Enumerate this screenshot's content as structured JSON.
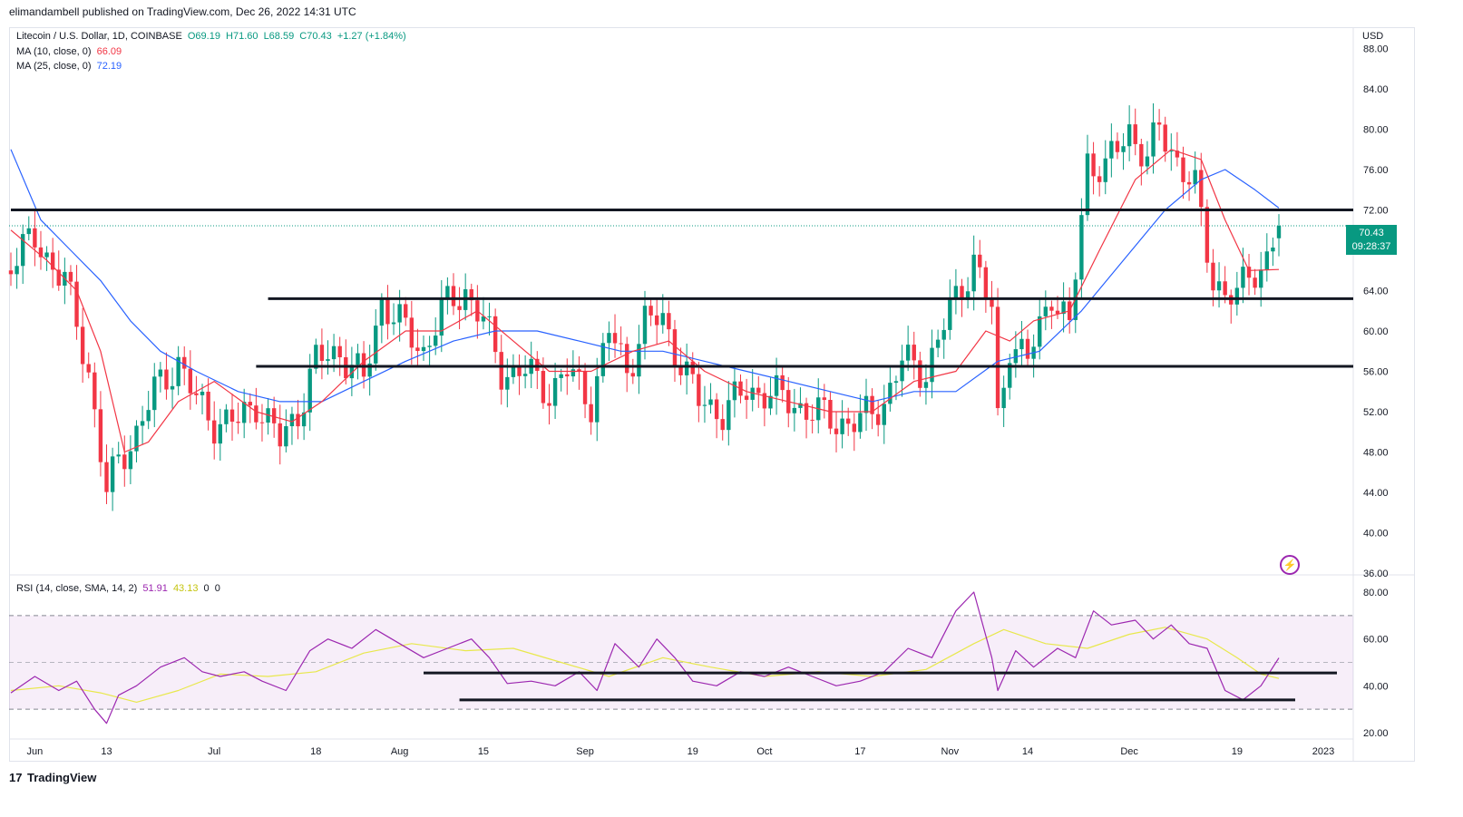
{
  "publisher_line": "elimandambell published on TradingView.com, Dec 26, 2022 14:31 UTC",
  "legend": {
    "symbol": "Litecoin / U.S. Dollar, 1D, COINBASE",
    "open": "O69.19",
    "high": "H71.60",
    "low": "L68.59",
    "close": "C70.43",
    "change": "+1.27 (+1.84%)",
    "ma10_label": "MA (10, close, 0)",
    "ma10_value": "66.09",
    "ma25_label": "MA (25, close, 0)",
    "ma25_value": "72.19",
    "rsi_label": "RSI (14, close, SMA, 14, 2)",
    "rsi_value": "51.91",
    "rsi_sma_value": "43.13",
    "rsi_extra1": "0",
    "rsi_extra2": "0"
  },
  "price_tag": {
    "price": "70.43",
    "countdown": "09:28:37"
  },
  "currency": "USD",
  "footer": {
    "brand": "TradingView"
  },
  "colors": {
    "up": "#089981",
    "down": "#f23645",
    "ma10": "#f23645",
    "ma25": "#2962ff",
    "rsi": "#9c27b0",
    "rsi_sma": "#e8e84c"
  },
  "chart_data": [
    {
      "type": "candlestick",
      "title": "Litecoin / U.S. Dollar, 1D, COINBASE",
      "y_ticks": [
        "88.00",
        "84.00",
        "80.00",
        "76.00",
        "72.00",
        "68.00",
        "64.00",
        "60.00",
        "56.00",
        "52.00",
        "48.00",
        "44.00",
        "40.00",
        "36.00"
      ],
      "ylim": [
        36,
        89
      ],
      "x_ticks": [
        "Jun",
        "13",
        "Jul",
        "18",
        "Aug",
        "15",
        "Sep",
        "19",
        "Oct",
        "17",
        "Nov",
        "14",
        "Dec",
        "19",
        "2023"
      ],
      "close_points": [
        [
          "May 28",
          67
        ],
        [
          "Jun 1",
          69
        ],
        [
          "Jun 6",
          65
        ],
        [
          "Jun 10",
          56
        ],
        [
          "Jun 13",
          44
        ],
        [
          "Jun 15",
          47
        ],
        [
          "Jun 18",
          50
        ],
        [
          "Jun 21",
          54
        ],
        [
          "Jun 25",
          57
        ],
        [
          "Jun 28",
          53
        ],
        [
          "Jul 1",
          51
        ],
        [
          "Jul 5",
          51
        ],
        [
          "Jul 8",
          53
        ],
        [
          "Jul 12",
          49
        ],
        [
          "Jul 15",
          52
        ],
        [
          "Jul 18",
          57
        ],
        [
          "Jul 22",
          58
        ],
        [
          "Jul 26",
          55
        ],
        [
          "Jul 29",
          63
        ],
        [
          "Aug 2",
          60
        ],
        [
          "Aug 5",
          58
        ],
        [
          "Aug 8",
          62
        ],
        [
          "Aug 12",
          64
        ],
        [
          "Aug 15",
          61
        ],
        [
          "Aug 18",
          56
        ],
        [
          "Aug 22",
          56
        ],
        [
          "Aug 26",
          54
        ],
        [
          "Aug 29",
          56
        ],
        [
          "Sep 2",
          53
        ],
        [
          "Sep 5",
          60
        ],
        [
          "Sep 8",
          56
        ],
        [
          "Sep 11",
          61
        ],
        [
          "Sep 14",
          61
        ],
        [
          "Sep 17",
          57
        ],
        [
          "Sep 20",
          53
        ],
        [
          "Sep 24",
          52
        ],
        [
          "Sep 28",
          54
        ],
        [
          "Oct 1",
          54
        ],
        [
          "Oct 5",
          53
        ],
        [
          "Oct 9",
          52
        ],
        [
          "Oct 13",
          51
        ],
        [
          "Oct 17",
          51
        ],
        [
          "Oct 21",
          53
        ],
        [
          "Oct 24",
          57
        ],
        [
          "Oct 28",
          56
        ],
        [
          "Nov 1",
          62
        ],
        [
          "Nov 5",
          67
        ],
        [
          "Nov 8",
          62
        ],
        [
          "Nov 9",
          51
        ],
        [
          "Nov 11",
          59
        ],
        [
          "Nov 14",
          57
        ],
        [
          "Nov 18",
          64
        ],
        [
          "Nov 21",
          60
        ],
        [
          "Nov 24",
          77
        ],
        [
          "Nov 27",
          76
        ],
        [
          "Dec 1",
          80
        ],
        [
          "Dec 4",
          77
        ],
        [
          "Dec 6",
          80
        ],
        [
          "Dec 9",
          77
        ],
        [
          "Dec 12",
          74
        ],
        [
          "Dec 15",
          65
        ],
        [
          "Dec 17",
          64
        ],
        [
          "Dec 19",
          63
        ],
        [
          "Dec 21",
          66
        ],
        [
          "Dec 23",
          66
        ],
        [
          "Dec 25",
          69
        ],
        [
          "Dec 26",
          70.43
        ]
      ],
      "ma10_points": [
        [
          "May 28",
          70
        ],
        [
          "Jun 3",
          67
        ],
        [
          "Jun 8",
          64
        ],
        [
          "Jun 12",
          58
        ],
        [
          "Jun 16",
          48
        ],
        [
          "Jun 20",
          49
        ],
        [
          "Jun 25",
          53
        ],
        [
          "Jul 1",
          55
        ],
        [
          "Jul 8",
          52
        ],
        [
          "Jul 14",
          51
        ],
        [
          "Jul 19",
          53
        ],
        [
          "Jul 26",
          57
        ],
        [
          "Aug 2",
          60
        ],
        [
          "Aug 8",
          60
        ],
        [
          "Aug 14",
          62
        ],
        [
          "Aug 20",
          59
        ],
        [
          "Aug 26",
          56
        ],
        [
          "Sep 2",
          56
        ],
        [
          "Sep 9",
          58
        ],
        [
          "Sep 15",
          59
        ],
        [
          "Sep 21",
          56
        ],
        [
          "Sep 28",
          54
        ],
        [
          "Oct 5",
          53
        ],
        [
          "Oct 12",
          52
        ],
        [
          "Oct 19",
          52
        ],
        [
          "Oct 26",
          55
        ],
        [
          "Nov 2",
          56
        ],
        [
          "Nov 7",
          60
        ],
        [
          "Nov 11",
          59
        ],
        [
          "Nov 15",
          61
        ],
        [
          "Nov 21",
          62
        ],
        [
          "Nov 26",
          68
        ],
        [
          "Dec 2",
          75
        ],
        [
          "Dec 8",
          78
        ],
        [
          "Dec 13",
          77
        ],
        [
          "Dec 17",
          71
        ],
        [
          "Dec 21",
          66
        ],
        [
          "Dec 26",
          66.09
        ]
      ],
      "ma25_points": [
        [
          "May 28",
          78
        ],
        [
          "Jun 2",
          71
        ],
        [
          "Jun 7",
          68
        ],
        [
          "Jun 12",
          65
        ],
        [
          "Jun 17",
          61
        ],
        [
          "Jun 22",
          58
        ],
        [
          "Jun 28",
          56
        ],
        [
          "Jul 5",
          54
        ],
        [
          "Jul 12",
          53
        ],
        [
          "Jul 19",
          53
        ],
        [
          "Jul 26",
          55
        ],
        [
          "Aug 2",
          57
        ],
        [
          "Aug 10",
          59
        ],
        [
          "Aug 17",
          60
        ],
        [
          "Aug 24",
          60
        ],
        [
          "Aug 31",
          59
        ],
        [
          "Sep 7",
          58
        ],
        [
          "Sep 14",
          58
        ],
        [
          "Sep 21",
          57
        ],
        [
          "Sep 28",
          56
        ],
        [
          "Oct 5",
          55
        ],
        [
          "Oct 12",
          54
        ],
        [
          "Oct 19",
          53
        ],
        [
          "Oct 26",
          54
        ],
        [
          "Nov 2",
          54
        ],
        [
          "Nov 9",
          57
        ],
        [
          "Nov 16",
          58
        ],
        [
          "Nov 23",
          62
        ],
        [
          "Nov 30",
          67
        ],
        [
          "Dec 7",
          72
        ],
        [
          "Dec 13",
          75
        ],
        [
          "Dec 17",
          76
        ],
        [
          "Dec 22",
          74
        ],
        [
          "Dec 26",
          72.19
        ]
      ],
      "horizontal_levels": [
        {
          "value": 72.0,
          "from": "May 28",
          "to": "Dec 31"
        },
        {
          "value": 63.2,
          "from": "Jul 10",
          "to": "Dec 31"
        },
        {
          "value": 56.5,
          "from": "Jul 8",
          "to": "Dec 31"
        }
      ],
      "current_price": 70.43
    },
    {
      "type": "line",
      "title": "RSI (14, close, SMA, 14, 2)",
      "y_ticks": [
        "80.00",
        "60.00",
        "40.00",
        "20.00"
      ],
      "ylim": [
        17,
        84
      ],
      "bands": [
        30,
        50,
        70
      ],
      "rsi_points": [
        [
          "May 28",
          37
        ],
        [
          "Jun 1",
          44
        ],
        [
          "Jun 5",
          38
        ],
        [
          "Jun 8",
          42
        ],
        [
          "Jun 11",
          30
        ],
        [
          "Jun 13",
          24
        ],
        [
          "Jun 15",
          36
        ],
        [
          "Jun 18",
          40
        ],
        [
          "Jun 22",
          48
        ],
        [
          "Jun 26",
          52
        ],
        [
          "Jun 29",
          46
        ],
        [
          "Jul 2",
          44
        ],
        [
          "Jul 6",
          46
        ],
        [
          "Jul 9",
          42
        ],
        [
          "Jul 13",
          38
        ],
        [
          "Jul 17",
          55
        ],
        [
          "Jul 20",
          60
        ],
        [
          "Jul 24",
          56
        ],
        [
          "Jul 28",
          64
        ],
        [
          "Aug 1",
          58
        ],
        [
          "Aug 5",
          52
        ],
        [
          "Aug 9",
          56
        ],
        [
          "Aug 13",
          60
        ],
        [
          "Aug 16",
          52
        ],
        [
          "Aug 19",
          41
        ],
        [
          "Aug 23",
          42
        ],
        [
          "Aug 27",
          40
        ],
        [
          "Aug 31",
          46
        ],
        [
          "Sep 3",
          38
        ],
        [
          "Sep 6",
          58
        ],
        [
          "Sep 10",
          48
        ],
        [
          "Sep 13",
          60
        ],
        [
          "Sep 16",
          52
        ],
        [
          "Sep 19",
          42
        ],
        [
          "Sep 23",
          40
        ],
        [
          "Sep 27",
          46
        ],
        [
          "Oct 1",
          44
        ],
        [
          "Oct 5",
          48
        ],
        [
          "Oct 9",
          44
        ],
        [
          "Oct 13",
          40
        ],
        [
          "Oct 17",
          42
        ],
        [
          "Oct 21",
          46
        ],
        [
          "Oct 25",
          56
        ],
        [
          "Oct 29",
          52
        ],
        [
          "Nov 2",
          72
        ],
        [
          "Nov 5",
          80
        ],
        [
          "Nov 8",
          52
        ],
        [
          "Nov 9",
          38
        ],
        [
          "Nov 12",
          55
        ],
        [
          "Nov 15",
          48
        ],
        [
          "Nov 19",
          56
        ],
        [
          "Nov 22",
          52
        ],
        [
          "Nov 25",
          72
        ],
        [
          "Nov 28",
          66
        ],
        [
          "Dec 2",
          68
        ],
        [
          "Dec 5",
          60
        ],
        [
          "Dec 8",
          66
        ],
        [
          "Dec 11",
          58
        ],
        [
          "Dec 14",
          56
        ],
        [
          "Dec 17",
          38
        ],
        [
          "Dec 20",
          34
        ],
        [
          "Dec 23",
          40
        ],
        [
          "Dec 26",
          51.91
        ]
      ],
      "rsi_sma_points": [
        [
          "May 28",
          38
        ],
        [
          "Jun 5",
          40
        ],
        [
          "Jun 12",
          37
        ],
        [
          "Jun 18",
          33
        ],
        [
          "Jun 25",
          38
        ],
        [
          "Jul 2",
          45
        ],
        [
          "Jul 10",
          44
        ],
        [
          "Jul 18",
          46
        ],
        [
          "Jul 26",
          54
        ],
        [
          "Aug 3",
          58
        ],
        [
          "Aug 12",
          55
        ],
        [
          "Aug 20",
          56
        ],
        [
          "Aug 28",
          50
        ],
        [
          "Sep 5",
          44
        ],
        [
          "Sep 14",
          52
        ],
        [
          "Sep 22",
          48
        ],
        [
          "Oct 1",
          44
        ],
        [
          "Oct 10",
          46
        ],
        [
          "Oct 19",
          44
        ],
        [
          "Oct 28",
          47
        ],
        [
          "Nov 5",
          58
        ],
        [
          "Nov 10",
          64
        ],
        [
          "Nov 17",
          58
        ],
        [
          "Nov 24",
          56
        ],
        [
          "Dec 1",
          62
        ],
        [
          "Dec 7",
          65
        ],
        [
          "Dec 14",
          60
        ],
        [
          "Dec 19",
          52
        ],
        [
          "Dec 23",
          45
        ],
        [
          "Dec 26",
          43.13
        ]
      ],
      "horizontal_levels": [
        {
          "value": 45.5,
          "from": "Aug 5",
          "to": "Dec 31"
        },
        {
          "value": 34,
          "from": "Aug 11",
          "to": "Dec 26"
        }
      ]
    }
  ]
}
